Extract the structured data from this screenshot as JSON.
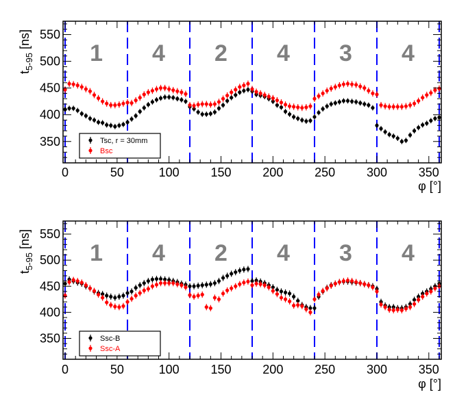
{
  "chart_data": [
    {
      "type": "scatter",
      "title": "",
      "xlabel": "φ [°]",
      "ylabel": "t",
      "ylabel_sub": "5-95",
      "ylabel_unit": " [ns]",
      "xlim": [
        -2,
        362
      ],
      "ylim": [
        310,
        575
      ],
      "xticks": [
        "0",
        "50",
        "100",
        "150",
        "200",
        "250",
        "300",
        "350"
      ],
      "yticks": [
        "350",
        "400",
        "450",
        "500",
        "550"
      ],
      "dashed_lines_x": [
        0,
        60,
        120,
        180,
        240,
        300,
        360
      ],
      "region_labels": [
        {
          "x": 30,
          "label": "1"
        },
        {
          "x": 90,
          "label": "4"
        },
        {
          "x": 150,
          "label": "2"
        },
        {
          "x": 210,
          "label": "4"
        },
        {
          "x": 270,
          "label": "3"
        },
        {
          "x": 330,
          "label": "4"
        }
      ],
      "legend_position": "bottom-left",
      "series": [
        {
          "name": "Tsc, r = 30mm",
          "color": "#000000",
          "x": [
            0,
            4,
            8,
            12,
            16,
            20,
            24,
            28,
            32,
            36,
            40,
            44,
            48,
            52,
            56,
            60,
            64,
            68,
            72,
            76,
            80,
            84,
            88,
            92,
            96,
            100,
            104,
            108,
            112,
            116,
            120,
            124,
            128,
            132,
            136,
            140,
            144,
            148,
            152,
            156,
            160,
            164,
            168,
            172,
            176,
            180,
            184,
            188,
            192,
            196,
            200,
            204,
            208,
            212,
            216,
            220,
            224,
            228,
            232,
            236,
            240,
            244,
            248,
            252,
            256,
            260,
            264,
            268,
            272,
            276,
            280,
            284,
            288,
            292,
            296,
            300,
            304,
            308,
            312,
            316,
            320,
            324,
            328,
            332,
            336,
            340,
            344,
            348,
            352,
            356,
            360
          ],
          "values": [
            410,
            412,
            412,
            408,
            402,
            398,
            393,
            390,
            386,
            385,
            381,
            380,
            378,
            380,
            382,
            386,
            392,
            398,
            406,
            413,
            419,
            424,
            428,
            431,
            433,
            433,
            432,
            430,
            428,
            425,
            415,
            411,
            405,
            401,
            401,
            402,
            405,
            412,
            418,
            426,
            432,
            437,
            442,
            445,
            447,
            444,
            438,
            436,
            434,
            430,
            425,
            418,
            414,
            406,
            401,
            396,
            393,
            390,
            388,
            389,
            396,
            404,
            411,
            416,
            420,
            422,
            424,
            426,
            426,
            425,
            424,
            422,
            420,
            418,
            413,
            380,
            374,
            368,
            363,
            360,
            356,
            350,
            352,
            362,
            370,
            376,
            381,
            384,
            389,
            393,
            395
          ],
          "error": 5
        },
        {
          "name": "Bsc",
          "color": "#ff0000",
          "x": [
            0,
            4,
            8,
            12,
            16,
            20,
            24,
            28,
            32,
            36,
            40,
            44,
            48,
            52,
            56,
            60,
            64,
            68,
            72,
            76,
            80,
            84,
            88,
            92,
            96,
            100,
            104,
            108,
            112,
            116,
            120,
            124,
            128,
            132,
            136,
            140,
            144,
            148,
            152,
            156,
            160,
            164,
            168,
            172,
            176,
            180,
            184,
            188,
            192,
            196,
            200,
            204,
            208,
            212,
            216,
            220,
            224,
            228,
            232,
            236,
            240,
            244,
            248,
            252,
            256,
            260,
            264,
            268,
            272,
            276,
            280,
            284,
            288,
            292,
            296,
            300,
            304,
            308,
            312,
            316,
            320,
            324,
            328,
            332,
            336,
            340,
            344,
            348,
            352,
            356,
            360
          ],
          "values": [
            447,
            458,
            457,
            455,
            452,
            448,
            444,
            437,
            431,
            425,
            421,
            418,
            418,
            419,
            421,
            423,
            422,
            427,
            432,
            438,
            442,
            445,
            448,
            450,
            450,
            448,
            446,
            444,
            442,
            439,
            418,
            417,
            419,
            420,
            420,
            419,
            420,
            424,
            430,
            436,
            442,
            447,
            452,
            455,
            458,
            448,
            443,
            440,
            437,
            434,
            431,
            427,
            423,
            419,
            416,
            415,
            414,
            413,
            414,
            416,
            430,
            435,
            440,
            445,
            449,
            452,
            455,
            457,
            458,
            457,
            456,
            453,
            450,
            445,
            440,
            438,
            418,
            416,
            415,
            415,
            415,
            415,
            416,
            418,
            421,
            426,
            432,
            437,
            441,
            446,
            449
          ],
          "error": 6
        }
      ]
    },
    {
      "type": "scatter",
      "title": "",
      "xlabel": "φ [°]",
      "ylabel": "t",
      "ylabel_sub": "5-95",
      "ylabel_unit": " [ns]",
      "xlim": [
        -2,
        362
      ],
      "ylim": [
        310,
        575
      ],
      "xticks": [
        "0",
        "50",
        "100",
        "150",
        "200",
        "250",
        "300",
        "350"
      ],
      "yticks": [
        "350",
        "400",
        "450",
        "500",
        "550"
      ],
      "dashed_lines_x": [
        0,
        60,
        120,
        180,
        240,
        300,
        360
      ],
      "region_labels": [
        {
          "x": 30,
          "label": "1"
        },
        {
          "x": 90,
          "label": "4"
        },
        {
          "x": 150,
          "label": "2"
        },
        {
          "x": 210,
          "label": "4"
        },
        {
          "x": 270,
          "label": "3"
        },
        {
          "x": 330,
          "label": "4"
        }
      ],
      "legend_position": "bottom-left",
      "series": [
        {
          "name": "Ssc-B",
          "color": "#000000",
          "x": [
            0,
            4,
            8,
            12,
            16,
            20,
            24,
            28,
            32,
            36,
            40,
            44,
            48,
            52,
            56,
            60,
            64,
            68,
            72,
            76,
            80,
            84,
            88,
            92,
            96,
            100,
            104,
            108,
            112,
            116,
            120,
            124,
            128,
            132,
            136,
            140,
            144,
            148,
            152,
            156,
            160,
            164,
            168,
            172,
            176,
            180,
            184,
            188,
            192,
            196,
            200,
            204,
            208,
            212,
            216,
            220,
            224,
            228,
            232,
            236,
            240,
            244,
            248,
            252,
            256,
            260,
            264,
            268,
            272,
            276,
            280,
            284,
            288,
            292,
            296,
            300,
            304,
            308,
            312,
            316,
            320,
            324,
            328,
            332,
            336,
            340,
            344,
            348,
            352,
            356,
            360
          ],
          "values": [
            455,
            463,
            460,
            457,
            455,
            450,
            446,
            440,
            437,
            435,
            432,
            430,
            428,
            430,
            432,
            437,
            440,
            447,
            452,
            456,
            460,
            463,
            464,
            464,
            463,
            462,
            460,
            458,
            455,
            453,
            450,
            450,
            451,
            452,
            453,
            454,
            456,
            460,
            466,
            470,
            474,
            477,
            480,
            482,
            483,
            460,
            461,
            459,
            456,
            452,
            448,
            443,
            440,
            438,
            436,
            430,
            422,
            414,
            410,
            408,
            408,
            430,
            440,
            447,
            452,
            455,
            458,
            459,
            459,
            458,
            457,
            456,
            454,
            452,
            450,
            445,
            420,
            413,
            410,
            410,
            408,
            408,
            410,
            416,
            424,
            430,
            436,
            440,
            445,
            450,
            455
          ],
          "error": 6
        },
        {
          "name": "Ssc-A",
          "color": "#ff0000",
          "x": [
            0,
            4,
            8,
            12,
            16,
            20,
            24,
            28,
            32,
            36,
            40,
            44,
            48,
            52,
            56,
            60,
            64,
            68,
            72,
            76,
            80,
            84,
            88,
            92,
            96,
            100,
            104,
            108,
            112,
            116,
            120,
            124,
            128,
            132,
            136,
            140,
            144,
            148,
            152,
            156,
            160,
            164,
            168,
            172,
            176,
            180,
            184,
            188,
            192,
            196,
            200,
            204,
            208,
            212,
            216,
            220,
            224,
            228,
            232,
            236,
            240,
            244,
            248,
            252,
            256,
            260,
            264,
            268,
            272,
            276,
            280,
            284,
            288,
            292,
            296,
            300,
            304,
            308,
            312,
            316,
            320,
            324,
            328,
            332,
            336,
            340,
            344,
            348,
            352,
            356,
            360
          ],
          "values": [
            432,
            458,
            462,
            460,
            457,
            452,
            446,
            441,
            434,
            428,
            419,
            414,
            411,
            410,
            412,
            420,
            426,
            432,
            437,
            442,
            445,
            450,
            453,
            456,
            456,
            456,
            456,
            454,
            452,
            448,
            433,
            430,
            432,
            434,
            410,
            408,
            428,
            425,
            436,
            442,
            446,
            450,
            454,
            457,
            459,
            452,
            455,
            454,
            452,
            448,
            441,
            435,
            428,
            425,
            421,
            413,
            414,
            412,
            406,
            400,
            425,
            434,
            441,
            446,
            451,
            455,
            458,
            460,
            461,
            460,
            458,
            456,
            454,
            452,
            448,
            440,
            415,
            410,
            405,
            404,
            405,
            404,
            407,
            410,
            416,
            424,
            430,
            436,
            440,
            446,
            450
          ],
          "error": 6
        }
      ]
    }
  ]
}
